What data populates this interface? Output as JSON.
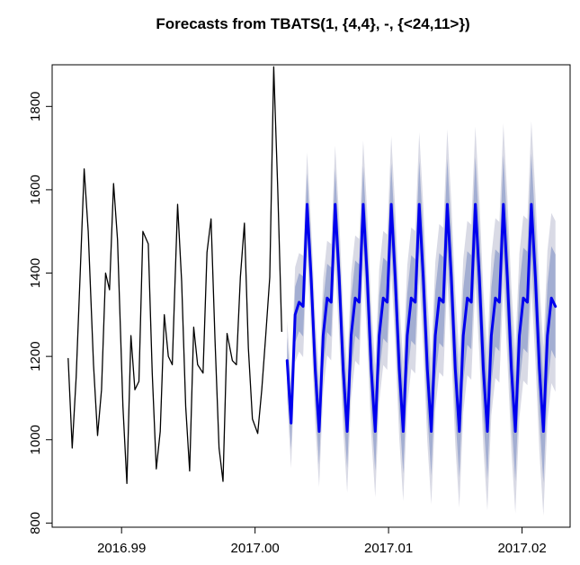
{
  "chart_data": {
    "type": "line",
    "title": "Forecasts from TBATS(1, {4,4}, -, {<24,11>})",
    "xlabel": "",
    "ylabel": "",
    "xlim": [
      2016.9848,
      2017.0236
    ],
    "ylim": [
      790,
      1900
    ],
    "x_ticks": [
      {
        "value": 2016.99,
        "label": "2016.99"
      },
      {
        "value": 2017.0,
        "label": "2017.00"
      },
      {
        "value": 2017.01,
        "label": "2017.01"
      },
      {
        "value": 2017.02,
        "label": "2017.02"
      }
    ],
    "y_ticks": [
      {
        "value": 800,
        "label": "800"
      },
      {
        "value": 1000,
        "label": "1000"
      },
      {
        "value": 1200,
        "label": "1200"
      },
      {
        "value": 1400,
        "label": "1400"
      },
      {
        "value": 1600,
        "label": "1600"
      },
      {
        "value": 1800,
        "label": "1800"
      }
    ],
    "grid": false,
    "legend": "none",
    "colors": {
      "observed": "#000000",
      "forecast": "#0000ee",
      "band_80": "#a3aed2",
      "band_95": "#d9dae5",
      "axis": "#000000"
    },
    "series": [
      {
        "role": "observed",
        "x": [
          2016.986,
          2016.9863,
          2016.9866,
          2016.9869,
          2016.9872,
          2016.9875,
          2016.9879,
          2016.9882,
          2016.9885,
          2016.9888,
          2016.9891,
          2016.9894,
          2016.9897,
          2016.9901,
          2016.9904,
          2016.9907,
          2016.991,
          2016.9913,
          2016.9916,
          2016.992,
          2016.9923,
          2016.9926,
          2016.9929,
          2016.9932,
          2016.9935,
          2016.9938,
          2016.9942,
          2016.9945,
          2016.9948,
          2016.9951,
          2016.9954,
          2016.9957,
          2016.9961,
          2016.9964,
          2016.9967,
          2016.997,
          2016.9973,
          2016.9976,
          2016.9979,
          2016.9983,
          2016.9986,
          2016.9989,
          2016.9992,
          2016.9995,
          2016.9998,
          2017.0002,
          2017.0005,
          2017.0008,
          2017.0011,
          2017.0014,
          2017.0017,
          2017.002,
          2017.0024,
          2017.0027
        ],
        "y": [
          1195,
          980,
          1150,
          1400,
          1650,
          1500,
          1180,
          1010,
          1120,
          1400,
          1360,
          1615,
          1480,
          1080,
          895,
          1250,
          1120,
          1140,
          1500,
          1470,
          1160,
          930,
          1020,
          1300,
          1200,
          1180,
          1565,
          1380,
          1080,
          925,
          1270,
          1180,
          1160,
          1450,
          1530,
          1240,
          980,
          900,
          1255,
          1190,
          1180,
          1390,
          1520,
          1220,
          1050,
          1015,
          1120,
          1250,
          1390,
          1895,
          1600,
          1260,
          null,
          null
        ]
      },
      {
        "role": "forecast",
        "x": [
          2017.0024,
          2017.0027,
          2017.003,
          2017.0033,
          2017.0036,
          2017.0039,
          2017.0042,
          2017.0045,
          2017.0048,
          2017.0051,
          2017.0054,
          2017.0057,
          2017.006,
          2017.0063,
          2017.0066,
          2017.0069,
          2017.0072,
          2017.0075,
          2017.0078,
          2017.0081,
          2017.0084,
          2017.0087,
          2017.009,
          2017.0093,
          2017.0096,
          2017.0099,
          2017.0102,
          2017.0105,
          2017.0108,
          2017.0111,
          2017.0114,
          2017.0117,
          2017.012,
          2017.0123,
          2017.0126,
          2017.0129,
          2017.0132,
          2017.0135,
          2017.0138,
          2017.0141,
          2017.0144,
          2017.0147,
          2017.015,
          2017.0153,
          2017.0156,
          2017.0159,
          2017.0162,
          2017.0165,
          2017.0168,
          2017.0171,
          2017.0174,
          2017.0177,
          2017.018,
          2017.0183,
          2017.0186,
          2017.0189,
          2017.0192,
          2017.0195,
          2017.0198,
          2017.0201,
          2017.0204,
          2017.0207,
          2017.021,
          2017.0213,
          2017.0216,
          2017.0219,
          2017.0222,
          2017.0225
        ],
        "y": [
          1190,
          1040,
          1300,
          1330,
          1320,
          1565,
          1390,
          1170,
          1020,
          1250,
          1340,
          1330,
          1565,
          1390,
          1170,
          1020,
          1250,
          1340,
          1330,
          1565,
          1390,
          1170,
          1020,
          1250,
          1340,
          1330,
          1565,
          1390,
          1170,
          1020,
          1250,
          1340,
          1330,
          1565,
          1390,
          1170,
          1020,
          1250,
          1340,
          1330,
          1565,
          1390,
          1170,
          1020,
          1250,
          1340,
          1330,
          1565,
          1390,
          1170,
          1020,
          1250,
          1340,
          1330,
          1565,
          1390,
          1170,
          1020,
          1250,
          1340,
          1330,
          1565,
          1390,
          1170,
          1020,
          1250,
          1340,
          1320
        ]
      }
    ]
  }
}
